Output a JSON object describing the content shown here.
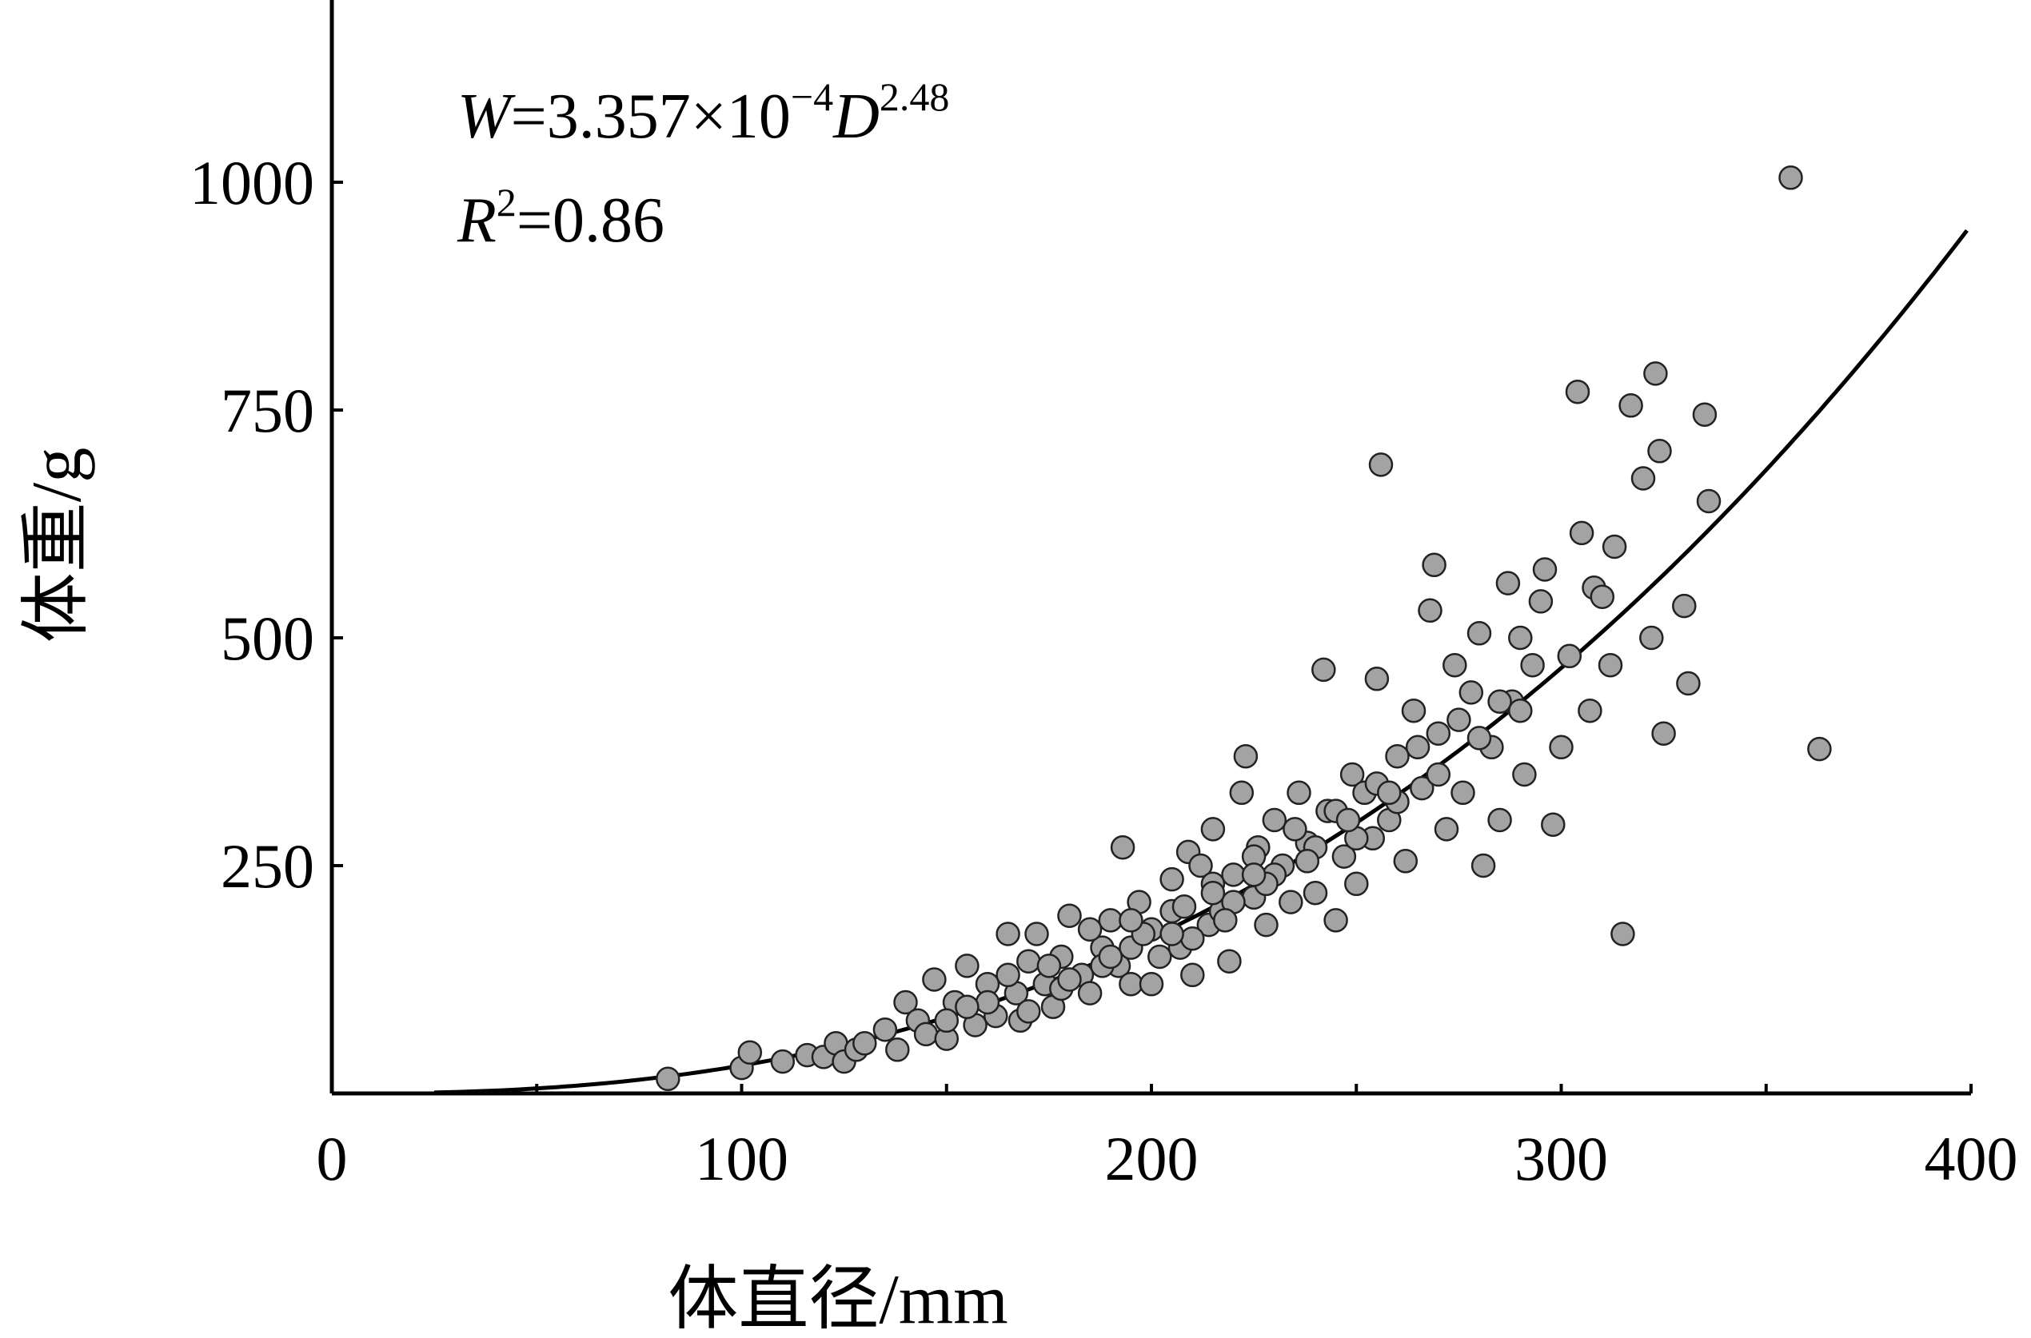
{
  "chart_data": {
    "type": "scatter",
    "xlabel": "体直径/mm",
    "ylabel": "体重/g",
    "xlim": [
      0,
      400
    ],
    "ylim": [
      0,
      1200
    ],
    "x_ticks": [
      "0",
      "100",
      "200",
      "300",
      "400"
    ],
    "y_ticks": [
      "250",
      "500",
      "750",
      "1000"
    ],
    "x_minor_step": 50,
    "grid": false,
    "point_color": "#a3a3a3",
    "point_stroke": "#222222",
    "curve_color": "#000000",
    "equation": {
      "w": "W",
      "eq1": "=3.357×10",
      "exp1": "−4",
      "d": "D",
      "exp2": "2.48",
      "r": "R",
      "r_sup": "2",
      "r_val": "=0.86"
    },
    "fit": {
      "a": 0.0003357,
      "b": 2.48,
      "x_range": [
        25,
        400
      ]
    },
    "points": [
      [
        82,
        16
      ],
      [
        100,
        28
      ],
      [
        102,
        45
      ],
      [
        110,
        35
      ],
      [
        116,
        42
      ],
      [
        120,
        40
      ],
      [
        123,
        55
      ],
      [
        125,
        35
      ],
      [
        128,
        48
      ],
      [
        130,
        55
      ],
      [
        135,
        70
      ],
      [
        138,
        48
      ],
      [
        140,
        100
      ],
      [
        143,
        80
      ],
      [
        145,
        65
      ],
      [
        147,
        125
      ],
      [
        150,
        60
      ],
      [
        152,
        100
      ],
      [
        155,
        140
      ],
      [
        157,
        75
      ],
      [
        160,
        120
      ],
      [
        162,
        85
      ],
      [
        165,
        175
      ],
      [
        167,
        110
      ],
      [
        170,
        145
      ],
      [
        172,
        175
      ],
      [
        174,
        120
      ],
      [
        176,
        95
      ],
      [
        178,
        150
      ],
      [
        180,
        195
      ],
      [
        183,
        130
      ],
      [
        185,
        110
      ],
      [
        188,
        160
      ],
      [
        190,
        190
      ],
      [
        192,
        140
      ],
      [
        193,
        270
      ],
      [
        195,
        120
      ],
      [
        197,
        210
      ],
      [
        200,
        180
      ],
      [
        202,
        150
      ],
      [
        205,
        235
      ],
      [
        207,
        160
      ],
      [
        209,
        265
      ],
      [
        210,
        130
      ],
      [
        212,
        250
      ],
      [
        214,
        185
      ],
      [
        215,
        290
      ],
      [
        217,
        200
      ],
      [
        219,
        145
      ],
      [
        220,
        240
      ],
      [
        222,
        330
      ],
      [
        223,
        370
      ],
      [
        225,
        215
      ],
      [
        226,
        270
      ],
      [
        228,
        185
      ],
      [
        230,
        300
      ],
      [
        232,
        250
      ],
      [
        234,
        210
      ],
      [
        236,
        330
      ],
      [
        238,
        275
      ],
      [
        240,
        220
      ],
      [
        242,
        465
      ],
      [
        243,
        310
      ],
      [
        245,
        190
      ],
      [
        247,
        260
      ],
      [
        249,
        350
      ],
      [
        250,
        230
      ],
      [
        252,
        330
      ],
      [
        254,
        280
      ],
      [
        255,
        455
      ],
      [
        256,
        690
      ],
      [
        258,
        300
      ],
      [
        260,
        370
      ],
      [
        262,
        255
      ],
      [
        264,
        420
      ],
      [
        266,
        335
      ],
      [
        268,
        530
      ],
      [
        269,
        580
      ],
      [
        270,
        395
      ],
      [
        272,
        290
      ],
      [
        274,
        470
      ],
      [
        276,
        330
      ],
      [
        278,
        440
      ],
      [
        280,
        505
      ],
      [
        281,
        250
      ],
      [
        283,
        380
      ],
      [
        285,
        300
      ],
      [
        287,
        560
      ],
      [
        288,
        430
      ],
      [
        290,
        500
      ],
      [
        291,
        350
      ],
      [
        293,
        470
      ],
      [
        295,
        540
      ],
      [
        296,
        575
      ],
      [
        298,
        295
      ],
      [
        300,
        380
      ],
      [
        302,
        480
      ],
      [
        304,
        770
      ],
      [
        305,
        615
      ],
      [
        307,
        420
      ],
      [
        308,
        555
      ],
      [
        310,
        545
      ],
      [
        312,
        470
      ],
      [
        313,
        600
      ],
      [
        315,
        175
      ],
      [
        317,
        755
      ],
      [
        320,
        675
      ],
      [
        322,
        500
      ],
      [
        323,
        790
      ],
      [
        324,
        705
      ],
      [
        325,
        395
      ],
      [
        330,
        535
      ],
      [
        331,
        450
      ],
      [
        335,
        745
      ],
      [
        336,
        650
      ],
      [
        356,
        1005
      ],
      [
        363,
        378
      ],
      [
        160,
        100
      ],
      [
        175,
        140
      ],
      [
        185,
        180
      ],
      [
        195,
        160
      ],
      [
        205,
        200
      ],
      [
        215,
        230
      ],
      [
        225,
        260
      ],
      [
        235,
        290
      ],
      [
        245,
        310
      ],
      [
        255,
        340
      ],
      [
        265,
        380
      ],
      [
        275,
        410
      ],
      [
        285,
        430
      ],
      [
        200,
        120
      ],
      [
        210,
        170
      ],
      [
        220,
        210
      ],
      [
        230,
        240
      ],
      [
        240,
        270
      ],
      [
        250,
        280
      ],
      [
        260,
        320
      ],
      [
        270,
        350
      ],
      [
        280,
        390
      ],
      [
        290,
        420
      ],
      [
        168,
        80
      ],
      [
        178,
        115
      ],
      [
        188,
        140
      ],
      [
        198,
        175
      ],
      [
        208,
        205
      ],
      [
        218,
        190
      ],
      [
        228,
        230
      ],
      [
        238,
        255
      ],
      [
        248,
        300
      ],
      [
        258,
        330
      ],
      [
        150,
        80
      ],
      [
        155,
        95
      ],
      [
        165,
        130
      ],
      [
        170,
        90
      ],
      [
        180,
        125
      ],
      [
        190,
        150
      ],
      [
        195,
        190
      ],
      [
        205,
        175
      ],
      [
        215,
        220
      ],
      [
        225,
        240
      ]
    ]
  }
}
